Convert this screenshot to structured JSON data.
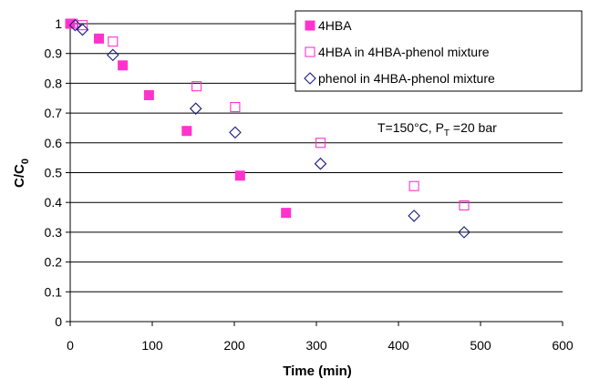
{
  "chart_data": {
    "type": "scatter",
    "xlabel": "Time (min)",
    "ylabel": {
      "main": "C/C",
      "sub": "0"
    },
    "xlim": [
      0,
      600
    ],
    "ylim": [
      0,
      1
    ],
    "xticks": [
      "0",
      "100",
      "200",
      "300",
      "400",
      "500",
      "600"
    ],
    "yticks": [
      "0",
      "0.1",
      "0.2",
      "0.3",
      "0.4",
      "0.5",
      "0.6",
      "0.7",
      "0.8",
      "0.9",
      "1"
    ],
    "grid": "horizontal",
    "legend_position": "top-right",
    "annotation": {
      "prefix": "T=150°C, P",
      "sub": "T",
      "suffix": " =20 bar"
    },
    "series": [
      {
        "name": "4HBA",
        "marker": "filled-square",
        "color": "#ff33cc",
        "points": [
          [
            0,
            1.0
          ],
          [
            35,
            0.95
          ],
          [
            64,
            0.86
          ],
          [
            96,
            0.76
          ],
          [
            142,
            0.64
          ],
          [
            207,
            0.49
          ],
          [
            263,
            0.365
          ]
        ]
      },
      {
        "name": "4HBA in 4HBA-phenol mixture",
        "marker": "open-square",
        "color": "#ff33cc",
        "points": [
          [
            3,
            1.0
          ],
          [
            15,
            0.995
          ],
          [
            52,
            0.94
          ],
          [
            154,
            0.79
          ],
          [
            201,
            0.72
          ],
          [
            305,
            0.6
          ],
          [
            419,
            0.455
          ],
          [
            480,
            0.39
          ]
        ]
      },
      {
        "name": "phenol in 4HBA-phenol mixture",
        "marker": "open-diamond",
        "color": "#1a1a7a",
        "points": [
          [
            6,
            0.995
          ],
          [
            15,
            0.98
          ],
          [
            52,
            0.895
          ],
          [
            153,
            0.715
          ],
          [
            201,
            0.635
          ],
          [
            305,
            0.53
          ],
          [
            419,
            0.355
          ],
          [
            480,
            0.3
          ]
        ]
      }
    ]
  }
}
